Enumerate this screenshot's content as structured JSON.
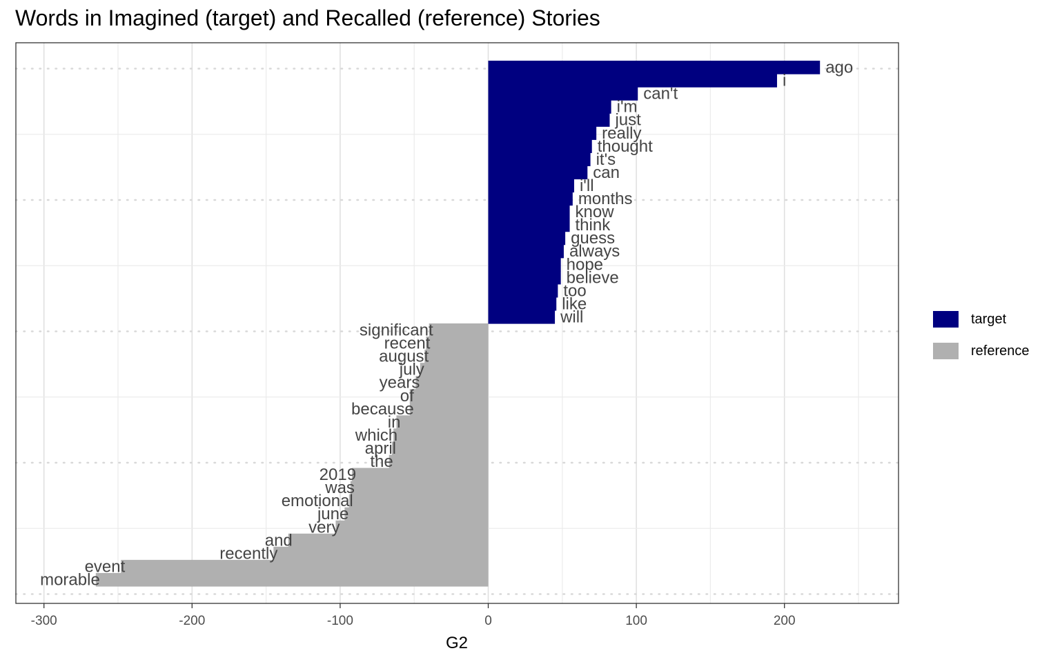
{
  "chart_data": {
    "type": "bar",
    "orientation": "horizontal",
    "title": "Words in Imagined (target) and Recalled (reference) Stories",
    "xlabel": "G2",
    "ylabel": "",
    "xlim": [
      -320,
      275
    ],
    "xticks": [
      -300,
      -200,
      -100,
      0,
      100,
      200
    ],
    "grid": true,
    "legend_position": "right",
    "colors": {
      "target": "#000080",
      "reference": "#b0b0b0"
    },
    "legend": [
      {
        "name": "target",
        "color": "#000080"
      },
      {
        "name": "reference",
        "color": "#b0b0b0"
      }
    ],
    "bars": [
      {
        "word": "ago",
        "value": 224,
        "group": "target"
      },
      {
        "word": "i",
        "value": 195,
        "group": "target"
      },
      {
        "word": "can't",
        "value": 101,
        "group": "target"
      },
      {
        "word": "i'm",
        "value": 83,
        "group": "target"
      },
      {
        "word": "just",
        "value": 82,
        "group": "target"
      },
      {
        "word": "really",
        "value": 73,
        "group": "target"
      },
      {
        "word": "thought",
        "value": 70,
        "group": "target"
      },
      {
        "word": "it's",
        "value": 69,
        "group": "target"
      },
      {
        "word": "can",
        "value": 67,
        "group": "target"
      },
      {
        "word": "i'll",
        "value": 58,
        "group": "target"
      },
      {
        "word": "months",
        "value": 57,
        "group": "target"
      },
      {
        "word": "know",
        "value": 55,
        "group": "target"
      },
      {
        "word": "think",
        "value": 55,
        "group": "target"
      },
      {
        "word": "guess",
        "value": 52,
        "group": "target"
      },
      {
        "word": "always",
        "value": 51,
        "group": "target"
      },
      {
        "word": "hope",
        "value": 49,
        "group": "target"
      },
      {
        "word": "believe",
        "value": 49,
        "group": "target"
      },
      {
        "word": "too",
        "value": 47,
        "group": "target"
      },
      {
        "word": "like",
        "value": 46,
        "group": "target"
      },
      {
        "word": "will",
        "value": 45,
        "group": "target"
      },
      {
        "word": "significant",
        "value": -40,
        "group": "reference"
      },
      {
        "word": "recent",
        "value": -42,
        "group": "reference"
      },
      {
        "word": "august",
        "value": -43,
        "group": "reference"
      },
      {
        "word": "july",
        "value": -46,
        "group": "reference"
      },
      {
        "word": "years",
        "value": -49,
        "group": "reference"
      },
      {
        "word": "of",
        "value": -53,
        "group": "reference"
      },
      {
        "word": "because",
        "value": -53,
        "group": "reference"
      },
      {
        "word": "in",
        "value": -62,
        "group": "reference"
      },
      {
        "word": "which",
        "value": -64,
        "group": "reference"
      },
      {
        "word": "april",
        "value": -65,
        "group": "reference"
      },
      {
        "word": "the",
        "value": -67,
        "group": "reference"
      },
      {
        "word": "2019",
        "value": -92,
        "group": "reference"
      },
      {
        "word": "was",
        "value": -93,
        "group": "reference"
      },
      {
        "word": "emotional",
        "value": -94,
        "group": "reference"
      },
      {
        "word": "june",
        "value": -97,
        "group": "reference"
      },
      {
        "word": "very",
        "value": -103,
        "group": "reference"
      },
      {
        "word": "and",
        "value": -135,
        "group": "reference"
      },
      {
        "word": "recently",
        "value": -145,
        "group": "reference"
      },
      {
        "word": "event",
        "value": -248,
        "group": "reference"
      },
      {
        "word": "morable",
        "value": -265,
        "group": "reference"
      }
    ]
  }
}
